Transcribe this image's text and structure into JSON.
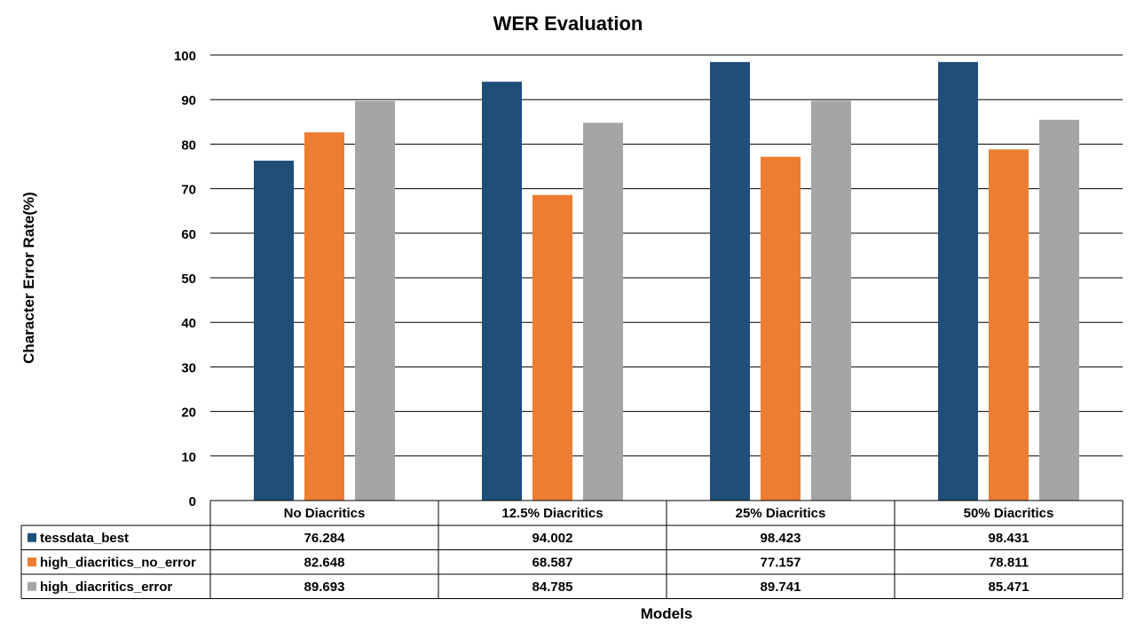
{
  "chart_data": {
    "type": "bar",
    "title": "WER Evaluation",
    "xlabel": "Models",
    "ylabel": "Character Error Rate(%)",
    "ylim": [
      0,
      100
    ],
    "yticks": [
      0,
      10,
      20,
      30,
      40,
      50,
      60,
      70,
      80,
      90,
      100
    ],
    "grid": true,
    "legend": "data-table",
    "categories": [
      "No Diacritics",
      "12.5% Diacritics",
      "25% Diacritics",
      "50% Diacritics"
    ],
    "series": [
      {
        "name": "tessdata_best",
        "color": "#1f4e79",
        "values": [
          76.284,
          94.002,
          98.423,
          98.431
        ],
        "labels": [
          "76.284",
          "94.002",
          "98.423",
          "98.431"
        ]
      },
      {
        "name": "high_diacritics_no_error",
        "color": "#ed7d31",
        "values": [
          82.648,
          68.587,
          77.157,
          78.811
        ],
        "labels": [
          "82.648",
          "68.587",
          "77.157",
          "78.811"
        ]
      },
      {
        "name": "high_diacritics_error",
        "color": "#a5a5a5",
        "values": [
          89.693,
          84.785,
          89.741,
          85.471
        ],
        "labels": [
          "89.693",
          "84.785",
          "89.741",
          "85.471"
        ]
      }
    ]
  }
}
